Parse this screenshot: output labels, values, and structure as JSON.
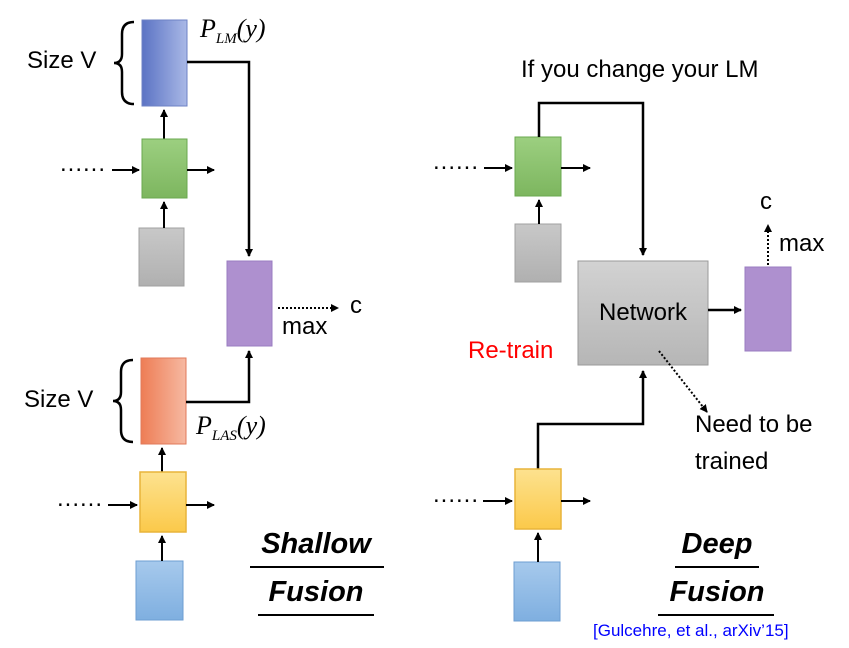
{
  "shallow": {
    "size_label_lm": "Size V",
    "size_label_las": "Size V",
    "p_lm": {
      "base": "P",
      "sub": "LM",
      "arg": "(y)"
    },
    "p_las": {
      "base": "P",
      "sub": "LAS",
      "arg": "(y)"
    },
    "max_label": "max",
    "output_label": "c",
    "dots_top": "......",
    "dots_bottom": "......",
    "title_line1": "Shallow",
    "title_line2": "Fusion"
  },
  "deep": {
    "change_lm_label": "If you change your LM",
    "network_label": "Network",
    "retrain_label": "Re-train",
    "need_train_line1": "Need to be",
    "need_train_line2": "trained",
    "max_label": "max",
    "output_label": "c",
    "dots_top": "......",
    "dots_bottom": "......",
    "title_line1": "Deep",
    "title_line2": "Fusion",
    "citation": "[Gulcehre, et al., arXiv’15]"
  },
  "colors": {
    "lm_output": "#7f93d2",
    "lm_rnn": "#8cc06e",
    "input_gray": "#bcbcbc",
    "combine_purple": "#ae90cf",
    "las_output": "#f08f6c",
    "las_rnn": "#fcd46a",
    "input_blue": "#93bde6",
    "network_gray": "#c4c4c4",
    "retrain_red": "#ff0000",
    "citation_blue": "#0000ff"
  }
}
